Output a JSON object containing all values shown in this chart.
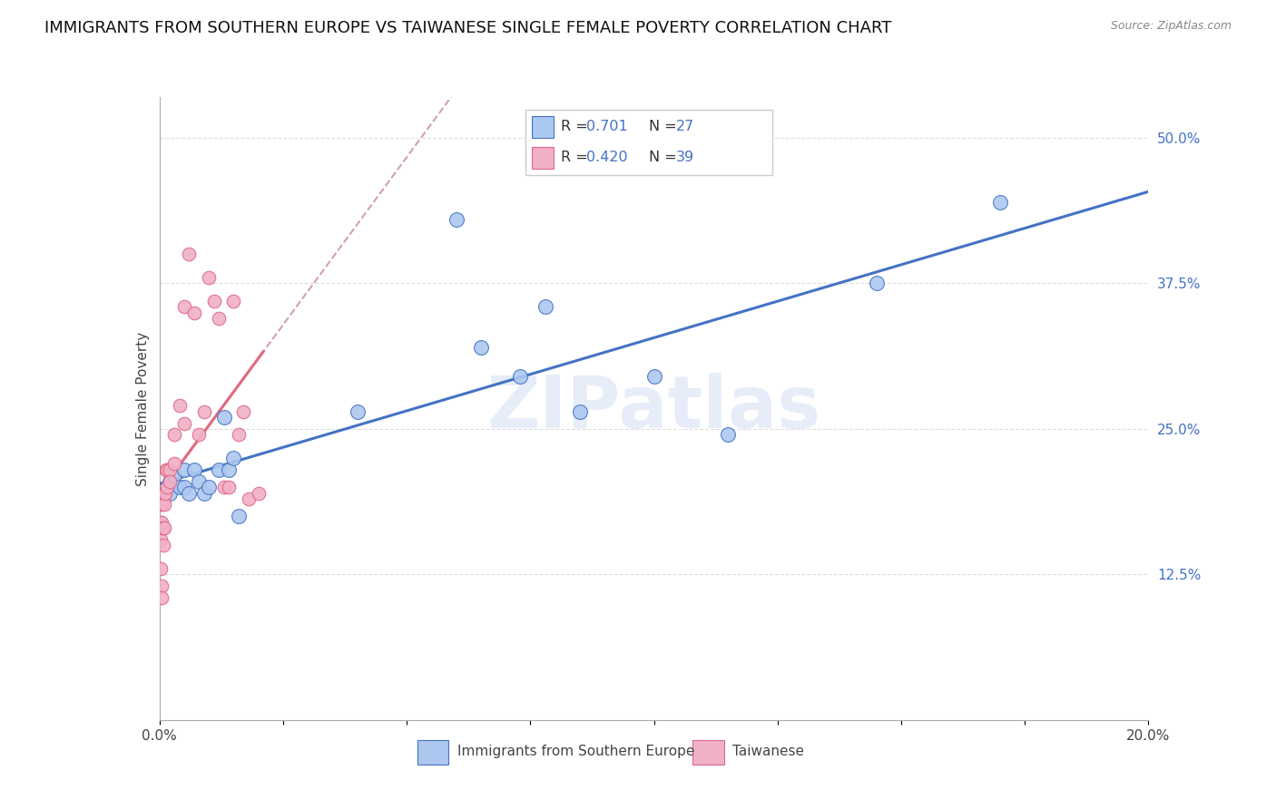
{
  "title": "IMMIGRANTS FROM SOUTHERN EUROPE VS TAIWANESE SINGLE FEMALE POVERTY CORRELATION CHART",
  "source": "Source: ZipAtlas.com",
  "ylabel": "Single Female Poverty",
  "right_yticks": [
    "50.0%",
    "37.5%",
    "25.0%",
    "12.5%"
  ],
  "right_ytick_vals": [
    0.5,
    0.375,
    0.25,
    0.125
  ],
  "blue_color": "#adc8f0",
  "pink_color": "#f0b0c8",
  "blue_line_color": "#4472c4",
  "pink_line_color": "#e06880",
  "dashed_line_color": "#d0a0b0",
  "watermark": "ZIPatlas",
  "blue_scatter_x": [
    0.001,
    0.002,
    0.002,
    0.003,
    0.004,
    0.005,
    0.005,
    0.006,
    0.007,
    0.008,
    0.009,
    0.01,
    0.012,
    0.013,
    0.014,
    0.015,
    0.016,
    0.04,
    0.06,
    0.065,
    0.073,
    0.078,
    0.085,
    0.1,
    0.115,
    0.145,
    0.17
  ],
  "blue_scatter_y": [
    0.195,
    0.205,
    0.195,
    0.21,
    0.2,
    0.215,
    0.2,
    0.195,
    0.215,
    0.205,
    0.195,
    0.2,
    0.215,
    0.26,
    0.215,
    0.225,
    0.175,
    0.265,
    0.43,
    0.32,
    0.295,
    0.355,
    0.265,
    0.295,
    0.245,
    0.375,
    0.445
  ],
  "pink_scatter_x": [
    0.0002,
    0.0002,
    0.0003,
    0.0003,
    0.0004,
    0.0004,
    0.0005,
    0.0005,
    0.0006,
    0.0007,
    0.0008,
    0.0009,
    0.001,
    0.001,
    0.0012,
    0.0013,
    0.0015,
    0.0016,
    0.002,
    0.002,
    0.003,
    0.003,
    0.004,
    0.005,
    0.005,
    0.006,
    0.007,
    0.008,
    0.009,
    0.01,
    0.011,
    0.012,
    0.013,
    0.014,
    0.015,
    0.016,
    0.017,
    0.018,
    0.02
  ],
  "pink_scatter_y": [
    0.17,
    0.155,
    0.185,
    0.13,
    0.115,
    0.105,
    0.185,
    0.17,
    0.165,
    0.19,
    0.15,
    0.195,
    0.185,
    0.165,
    0.195,
    0.215,
    0.215,
    0.2,
    0.215,
    0.205,
    0.22,
    0.245,
    0.27,
    0.355,
    0.255,
    0.4,
    0.35,
    0.245,
    0.265,
    0.38,
    0.36,
    0.345,
    0.2,
    0.2,
    0.36,
    0.245,
    0.265,
    0.19,
    0.195
  ],
  "xlim": [
    0.0,
    0.2
  ],
  "ylim": [
    0.0,
    0.535
  ],
  "legend_labels": [
    "Immigrants from Southern Europe",
    "Taiwanese"
  ],
  "title_fontsize": 13,
  "label_fontsize": 10,
  "grid_color": "#dddddd"
}
